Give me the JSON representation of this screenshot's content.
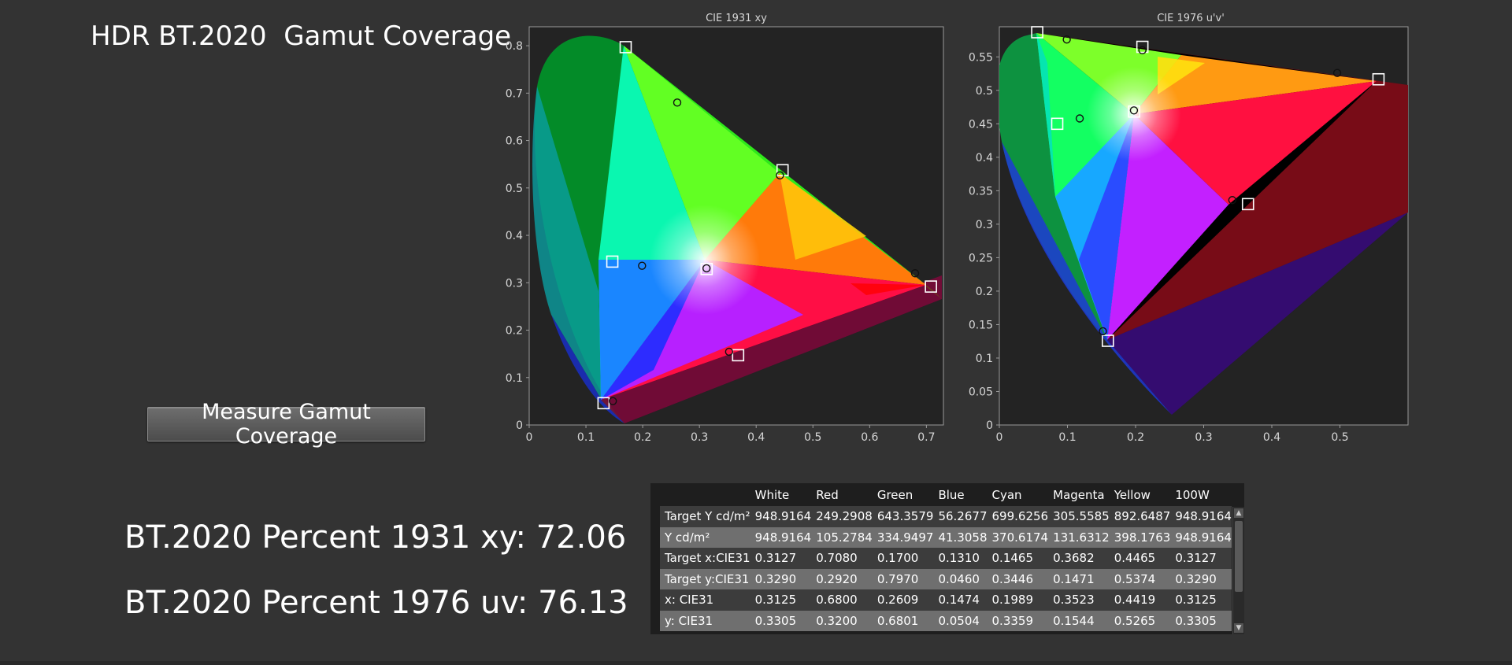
{
  "page_title": "HDR BT.2020  Gamut Coverage",
  "measure_button_label": "Measure Gamut Coverage",
  "results": {
    "xy_label": "BT.2020 Percent 1931 xy: 72.06",
    "uv_label": "BT.2020 Percent 1976 uv: 76.13"
  },
  "chart_data": [
    {
      "type": "scatter",
      "title": "CIE 1931 xy",
      "xlabel": "",
      "ylabel": "",
      "xlim": [
        0,
        0.73
      ],
      "ylim": [
        0,
        0.84
      ],
      "xticks": [
        "0",
        "0.1",
        "0.2",
        "0.3",
        "0.4",
        "0.5",
        "0.6",
        "0.7"
      ],
      "yticks": [
        "0",
        "0.1",
        "0.2",
        "0.3",
        "0.4",
        "0.5",
        "0.6",
        "0.7",
        "0.8"
      ],
      "grid": false,
      "series": [
        {
          "marker": "square",
          "points": [
            {
              "x": 0.3127,
              "y": 0.329
            },
            {
              "x": 0.708,
              "y": 0.292
            },
            {
              "x": 0.17,
              "y": 0.797
            },
            {
              "x": 0.131,
              "y": 0.046
            },
            {
              "x": 0.1465,
              "y": 0.3446
            },
            {
              "x": 0.3682,
              "y": 0.1471
            },
            {
              "x": 0.4465,
              "y": 0.5374
            }
          ]
        },
        {
          "marker": "circle",
          "points": [
            {
              "x": 0.3125,
              "y": 0.3305
            },
            {
              "x": 0.68,
              "y": 0.32
            },
            {
              "x": 0.2609,
              "y": 0.6801
            },
            {
              "x": 0.1474,
              "y": 0.0504
            },
            {
              "x": 0.1989,
              "y": 0.3359
            },
            {
              "x": 0.3523,
              "y": 0.1544
            },
            {
              "x": 0.4419,
              "y": 0.5265
            }
          ]
        }
      ]
    },
    {
      "type": "scatter",
      "title": "CIE 1976 u'v'",
      "xlabel": "",
      "ylabel": "",
      "xlim": [
        0,
        0.6
      ],
      "ylim": [
        0,
        0.595
      ],
      "xticks": [
        "0",
        "0.1",
        "0.2",
        "0.3",
        "0.4",
        "0.5"
      ],
      "yticks": [
        "0",
        "0.05",
        "0.1",
        "0.15",
        "0.2",
        "0.25",
        "0.3",
        "0.35",
        "0.4",
        "0.45",
        "0.5",
        "0.55"
      ],
      "grid": false,
      "series": [
        {
          "marker": "square",
          "points": [
            {
              "x": 0.1978,
              "y": 0.4683
            },
            {
              "x": 0.5566,
              "y": 0.5165
            },
            {
              "x": 0.0556,
              "y": 0.5868
            },
            {
              "x": 0.1593,
              "y": 0.1258
            },
            {
              "x": 0.085,
              "y": 0.45
            },
            {
              "x": 0.365,
              "y": 0.33
            },
            {
              "x": 0.21,
              "y": 0.565
            }
          ]
        },
        {
          "marker": "circle",
          "points": [
            {
              "x": 0.1976,
              "y": 0.47
            },
            {
              "x": 0.496,
              "y": 0.526
            },
            {
              "x": 0.099,
              "y": 0.576
            },
            {
              "x": 0.152,
              "y": 0.14
            },
            {
              "x": 0.118,
              "y": 0.458
            },
            {
              "x": 0.342,
              "y": 0.336
            },
            {
              "x": 0.21,
              "y": 0.56
            }
          ]
        }
      ]
    }
  ],
  "table": {
    "columns": [
      "",
      "White",
      "Red",
      "Green",
      "Blue",
      "Cyan",
      "Magenta",
      "Yellow",
      "100W"
    ],
    "rows": [
      [
        "Target Y cd/m²",
        "948.9164",
        "249.2908",
        "643.3579",
        "56.2677",
        "699.6256",
        "305.5585",
        "892.6487",
        "948.9164"
      ],
      [
        "Y cd/m²",
        "948.9164",
        "105.2784",
        "334.9497",
        "41.3058",
        "370.6174",
        "131.6312",
        "398.1763",
        "948.9164"
      ],
      [
        "Target x:CIE31",
        "0.3127",
        "0.7080",
        "0.1700",
        "0.1310",
        "0.1465",
        "0.3682",
        "0.4465",
        "0.3127"
      ],
      [
        "Target y:CIE31",
        "0.3290",
        "0.2920",
        "0.7970",
        "0.0460",
        "0.3446",
        "0.1471",
        "0.5374",
        "0.3290"
      ],
      [
        "x: CIE31",
        "0.3125",
        "0.6800",
        "0.2609",
        "0.1474",
        "0.1989",
        "0.3523",
        "0.4419",
        "0.3125"
      ],
      [
        "y: CIE31",
        "0.3305",
        "0.3200",
        "0.6801",
        "0.0504",
        "0.3359",
        "0.1544",
        "0.5265",
        "0.3305"
      ]
    ]
  }
}
